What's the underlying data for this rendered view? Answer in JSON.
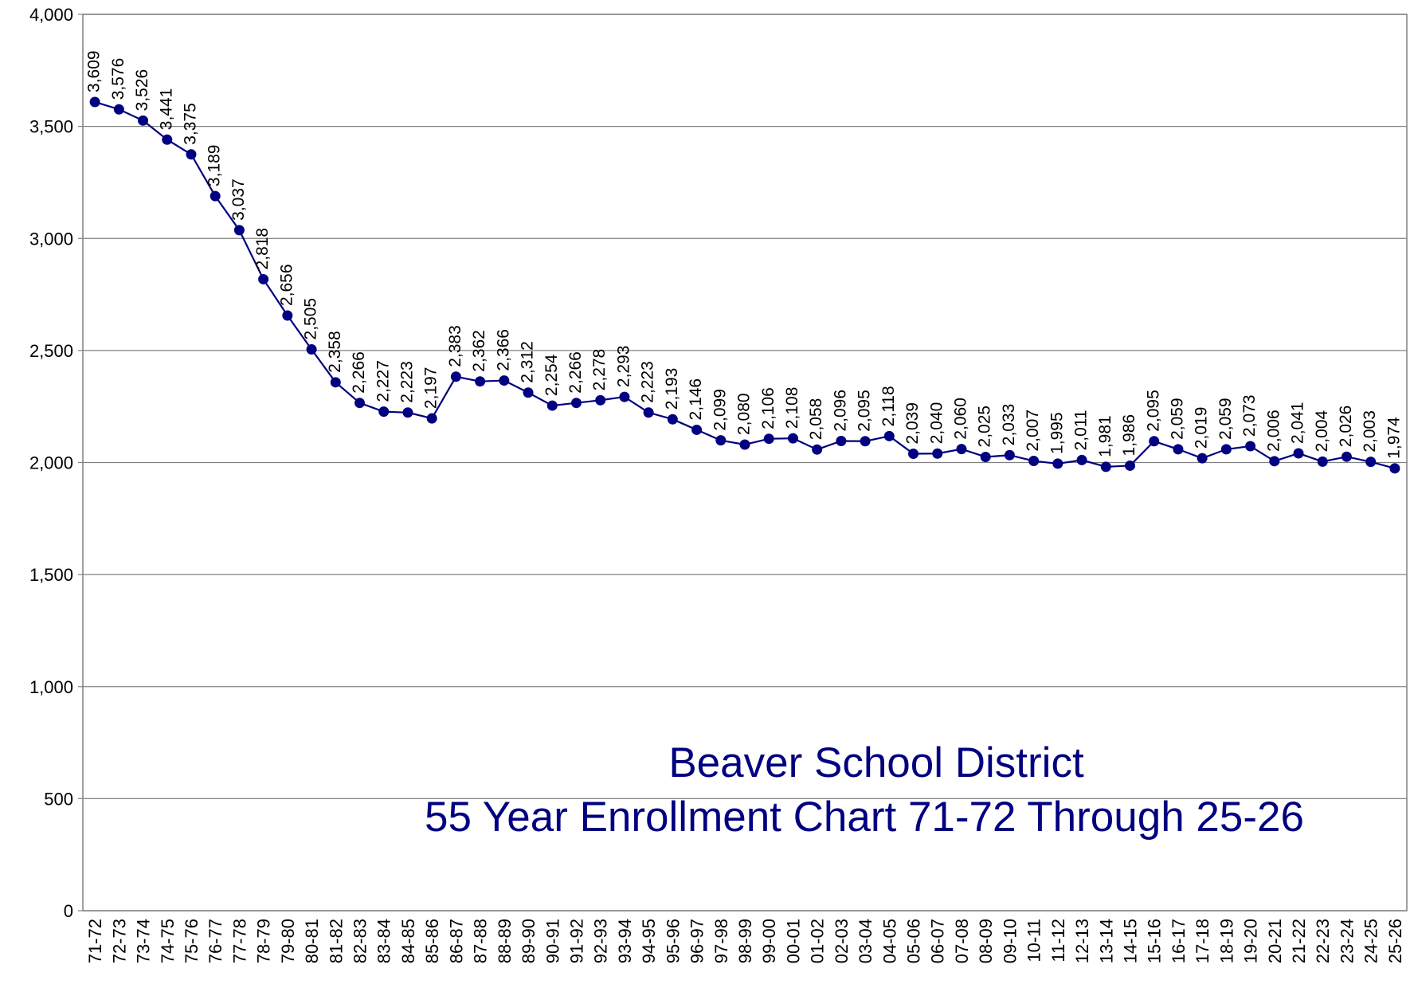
{
  "chart_data": {
    "type": "line",
    "title": [
      "Beaver School District",
      "55 Year Enrollment Chart 71-72 Through 25-26"
    ],
    "categories": [
      "71-72",
      "72-73",
      "73-74",
      "74-75",
      "75-76",
      "76-77",
      "77-78",
      "78-79",
      "79-80",
      "80-81",
      "81-82",
      "82-83",
      "83-84",
      "84-85",
      "85-86",
      "86-87",
      "87-88",
      "88-89",
      "89-90",
      "90-91",
      "91-92",
      "92-93",
      "93-94",
      "94-95",
      "95-96",
      "96-97",
      "97-98",
      "98-99",
      "99-00",
      "00-01",
      "01-02",
      "02-03",
      "03-04",
      "04-05",
      "05-06",
      "06-07",
      "07-08",
      "08-09",
      "09-10",
      "10-11",
      "11-12",
      "12-13",
      "13-14",
      "14-15",
      "15-16",
      "16-17",
      "17-18",
      "18-19",
      "19-20",
      "20-21",
      "21-22",
      "22-23",
      "23-24",
      "24-25",
      "25-26"
    ],
    "series": [
      {
        "color": "#000080",
        "values": [
          3609,
          3576,
          3526,
          3441,
          3375,
          3189,
          3037,
          2818,
          2656,
          2505,
          2358,
          2266,
          2227,
          2223,
          2197,
          2383,
          2362,
          2366,
          2312,
          2254,
          2266,
          2278,
          2293,
          2223,
          2193,
          2146,
          2099,
          2080,
          2106,
          2108,
          2058,
          2096,
          2095,
          2118,
          2039,
          2040,
          2060,
          2025,
          2033,
          2007,
          1995,
          2011,
          1981,
          1986,
          2095,
          2059,
          2019,
          2059,
          2073,
          2006,
          2041,
          2004,
          2026,
          2003,
          1974
        ],
        "value_labels": [
          "3,609",
          "3,576",
          "3,526",
          "3,441",
          "3,375",
          "3,189",
          "3,037",
          "2,818",
          "2,656",
          "2,505",
          "2,358",
          "2,266",
          "2,227",
          "2,223",
          "2,197",
          "2,383",
          "2,362",
          "2,366",
          "2,312",
          "2,254",
          "2,266",
          "2,278",
          "2,293",
          "2,223",
          "2,193",
          "2,146",
          "2,099",
          "2,080",
          "2,106",
          "2,108",
          "2,058",
          "2,096",
          "2,095",
          "2,118",
          "2,039",
          "2,040",
          "2,060",
          "2,025",
          "2,033",
          "2,007",
          "1,995",
          "2,011",
          "1,981",
          "1,986",
          "2,095",
          "2,059",
          "2,019",
          "2,059",
          "2,073",
          "2,006",
          "2,041",
          "2,004",
          "2,026",
          "2,003",
          "1,974"
        ]
      }
    ],
    "ylim": [
      0,
      4000
    ],
    "yticks": [
      0,
      500,
      {
        "value": 1000,
        "label": "1,000"
      },
      {
        "value": 1500,
        "label": "1,500"
      },
      {
        "value": 2000,
        "label": "2,000"
      },
      {
        "value": 2500,
        "label": "2,500"
      },
      {
        "value": 3000,
        "label": "3,000"
      },
      {
        "value": 3500,
        "label": "3,500"
      },
      {
        "value": 4000,
        "label": "4,000"
      }
    ],
    "grid": true
  }
}
